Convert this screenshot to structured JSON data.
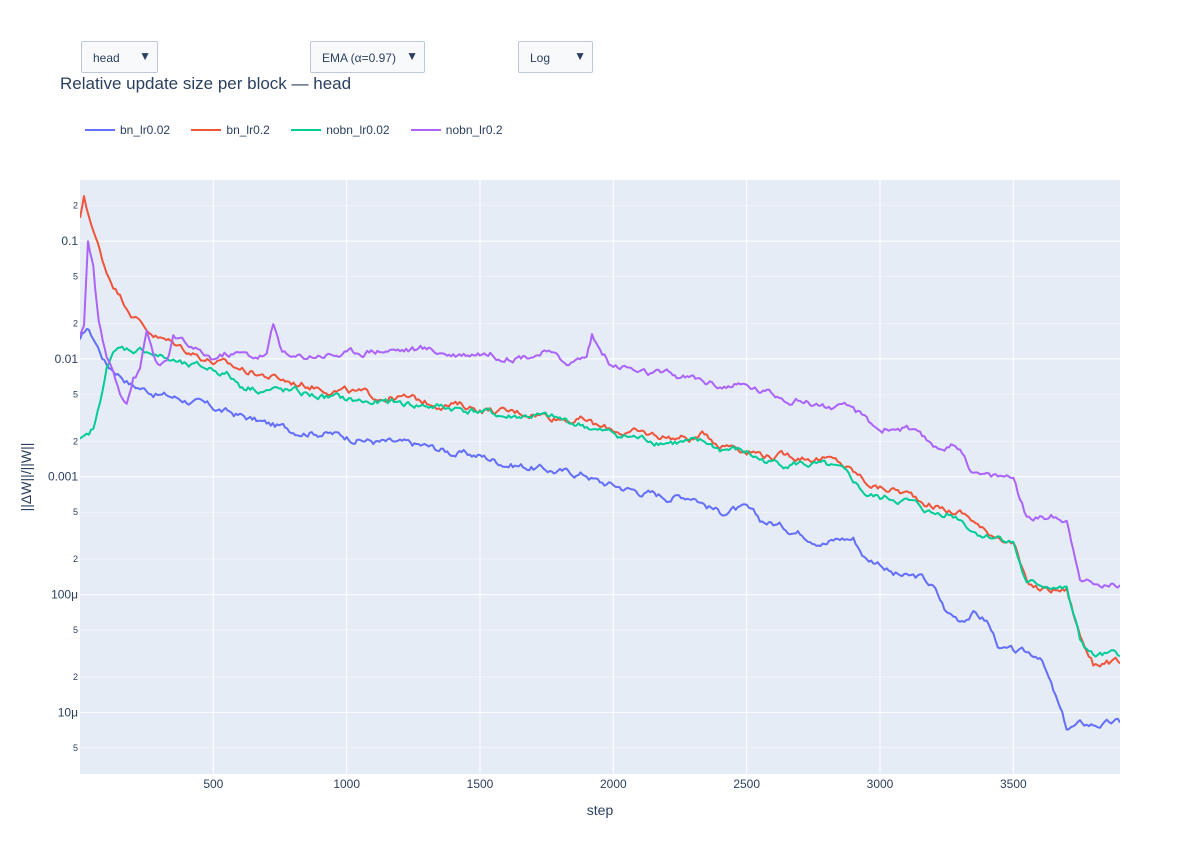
{
  "controls": {
    "block_select": {
      "value": "head"
    },
    "smoothing_select": {
      "value": "EMA (α=0.97)"
    },
    "scale_select": {
      "value": "Log"
    },
    "arrow": "▼"
  },
  "colors": {
    "plot_bg": "#e5ecf6",
    "grid": "#ffffff",
    "text": "#2a3f5f"
  },
  "chart_data": {
    "type": "line",
    "title": "Relative update size per block — head",
    "xlabel": "step",
    "ylabel": "||ΔW||/||W||",
    "xlim": [
      0,
      3900
    ],
    "ylim": [
      3e-06,
      0.33
    ],
    "y_scale": "log",
    "grid": true,
    "legend_placement": "top-left, horizontal",
    "x_ticks": [
      500,
      1000,
      1500,
      2000,
      2500,
      3000,
      3500
    ],
    "y_major_ticks": [
      {
        "value": 0.1,
        "label": "0.1"
      },
      {
        "value": 0.01,
        "label": "0.01"
      },
      {
        "value": 0.001,
        "label": "0.001"
      },
      {
        "value": 0.0001,
        "label": "100μ"
      },
      {
        "value": 1e-05,
        "label": "10μ"
      }
    ],
    "y_minor_ticks": [
      {
        "value": 0.2,
        "label": "2"
      },
      {
        "value": 0.05,
        "label": "5"
      },
      {
        "value": 0.02,
        "label": "2"
      },
      {
        "value": 0.005,
        "label": "5"
      },
      {
        "value": 0.002,
        "label": "2"
      },
      {
        "value": 0.0005,
        "label": "5"
      },
      {
        "value": 0.0002,
        "label": "2"
      },
      {
        "value": 5e-05,
        "label": "5"
      },
      {
        "value": 2e-05,
        "label": "2"
      },
      {
        "value": 5e-06,
        "label": "5"
      }
    ],
    "series": [
      {
        "name": "bn_lr0.02",
        "color": "#636efa",
        "x": [
          0,
          25,
          50,
          100,
          150,
          200,
          250,
          300,
          400,
          500,
          600,
          700,
          800,
          900,
          1000,
          1100,
          1200,
          1300,
          1400,
          1500,
          1600,
          1700,
          1800,
          1900,
          1950,
          2000,
          2100,
          2200,
          2300,
          2350,
          2400,
          2450,
          2500,
          2550,
          2600,
          2700,
          2800,
          2850,
          2900,
          2950,
          3000,
          3050,
          3100,
          3150,
          3200,
          3250,
          3300,
          3350,
          3400,
          3450,
          3500,
          3550,
          3600,
          3650,
          3700,
          3750,
          3800,
          3850,
          3900
        ],
        "y": [
          0.014,
          0.018,
          0.015,
          0.009,
          0.0075,
          0.006,
          0.0055,
          0.005,
          0.0045,
          0.0038,
          0.0033,
          0.0028,
          0.0025,
          0.0024,
          0.0022,
          0.002,
          0.0019,
          0.0018,
          0.0016,
          0.0015,
          0.0013,
          0.0012,
          0.0011,
          0.00105,
          0.0009,
          0.00085,
          0.00075,
          0.00068,
          0.0007,
          0.00058,
          0.0005,
          0.00053,
          0.00052,
          0.00042,
          0.0004,
          0.00034,
          0.00028,
          0.0003,
          0.0003,
          0.0002,
          0.00019,
          0.00015,
          0.00014,
          0.00014,
          0.000115,
          7e-05,
          6.2e-05,
          7e-05,
          6e-05,
          3.5e-05,
          3.2e-05,
          3.1e-05,
          3.1e-05,
          1.5e-05,
          7.2e-06,
          7.8e-06,
          7.9e-06,
          8e-06,
          8.2e-06
        ]
      },
      {
        "name": "bn_lr0.2",
        "color": "#ef553b",
        "x": [
          0,
          15,
          50,
          100,
          150,
          200,
          250,
          300,
          400,
          500,
          600,
          700,
          800,
          900,
          1000,
          1100,
          1200,
          1300,
          1400,
          1500,
          1600,
          1700,
          1800,
          1900,
          1950,
          2000,
          2100,
          2200,
          2300,
          2350,
          2400,
          2450,
          2500,
          2550,
          2600,
          2700,
          2800,
          2850,
          2900,
          2950,
          3000,
          3050,
          3100,
          3150,
          3200,
          3250,
          3300,
          3350,
          3400,
          3450,
          3500,
          3550,
          3600,
          3650,
          3700,
          3750,
          3800,
          3850,
          3900
        ],
        "y": [
          0.15,
          0.24,
          0.12,
          0.055,
          0.035,
          0.024,
          0.018,
          0.015,
          0.012,
          0.0095,
          0.0082,
          0.0072,
          0.0063,
          0.0058,
          0.0053,
          0.0048,
          0.0047,
          0.0043,
          0.0041,
          0.0038,
          0.0035,
          0.0035,
          0.0032,
          0.003,
          0.0026,
          0.0025,
          0.0023,
          0.0022,
          0.0021,
          0.0023,
          0.0019,
          0.0019,
          0.0017,
          0.0016,
          0.0015,
          0.0015,
          0.0014,
          0.0013,
          0.0011,
          0.0009,
          0.0008,
          0.00078,
          0.00072,
          0.00064,
          0.00058,
          0.00052,
          0.0005,
          0.00043,
          0.00033,
          0.00032,
          0.00028,
          0.00012,
          0.00011,
          0.00011,
          0.00011,
          4.5e-05,
          2.6e-05,
          2.7e-05,
          2.6e-05
        ]
      },
      {
        "name": "nobn_lr0.02",
        "color": "#00cc96",
        "x": [
          0,
          25,
          50,
          75,
          100,
          125,
          150,
          200,
          250,
          300,
          350,
          400,
          500,
          550,
          600,
          700,
          800,
          900,
          1000,
          1100,
          1200,
          1300,
          1400,
          1500,
          1600,
          1700,
          1800,
          1900,
          1950,
          2000,
          2100,
          2200,
          2300,
          2350,
          2400,
          2450,
          2500,
          2550,
          2600,
          2700,
          2800,
          2850,
          2900,
          2950,
          3000,
          3050,
          3100,
          3150,
          3200,
          3250,
          3300,
          3350,
          3400,
          3450,
          3500,
          3550,
          3600,
          3650,
          3700,
          3750,
          3800,
          3850,
          3900
        ],
        "y": [
          0.002,
          0.0021,
          0.0025,
          0.004,
          0.009,
          0.011,
          0.012,
          0.012,
          0.012,
          0.0105,
          0.0095,
          0.0085,
          0.0082,
          0.0075,
          0.006,
          0.0055,
          0.0052,
          0.0048,
          0.0045,
          0.0042,
          0.0042,
          0.004,
          0.0038,
          0.0036,
          0.0032,
          0.0033,
          0.003,
          0.0027,
          0.0024,
          0.0023,
          0.0021,
          0.002,
          0.0019,
          0.0019,
          0.0017,
          0.0017,
          0.0016,
          0.0014,
          0.0013,
          0.0013,
          0.0012,
          0.0011,
          0.0009,
          0.0007,
          0.00065,
          0.00065,
          0.00062,
          0.00055,
          0.00048,
          0.0005,
          0.00045,
          0.00035,
          0.00032,
          0.00031,
          0.00028,
          0.00012,
          0.00012,
          0.00012,
          0.00011,
          4e-05,
          3e-05,
          3e-05,
          3e-05
        ]
      },
      {
        "name": "nobn_lr0.2",
        "color": "#ab63fa",
        "x": [
          0,
          15,
          30,
          50,
          70,
          100,
          125,
          150,
          175,
          200,
          225,
          250,
          275,
          300,
          325,
          350,
          400,
          450,
          500,
          550,
          600,
          650,
          700,
          725,
          750,
          775,
          800,
          900,
          1000,
          1100,
          1200,
          1300,
          1400,
          1500,
          1600,
          1700,
          1750,
          1800,
          1850,
          1900,
          1920,
          1950,
          2000,
          2050,
          2100,
          2200,
          2300,
          2400,
          2500,
          2600,
          2700,
          2800,
          2850,
          2900,
          2950,
          3000,
          3050,
          3100,
          3150,
          3200,
          3250,
          3300,
          3350,
          3400,
          3450,
          3500,
          3550,
          3600,
          3650,
          3700,
          3750,
          3800,
          3850,
          3900
        ],
        "y": [
          0.015,
          0.02,
          0.1,
          0.06,
          0.02,
          0.01,
          0.008,
          0.0055,
          0.0045,
          0.007,
          0.008,
          0.017,
          0.011,
          0.0085,
          0.009,
          0.015,
          0.013,
          0.011,
          0.01,
          0.011,
          0.011,
          0.0105,
          0.011,
          0.019,
          0.013,
          0.011,
          0.01,
          0.011,
          0.011,
          0.012,
          0.012,
          0.012,
          0.011,
          0.0115,
          0.0105,
          0.011,
          0.0115,
          0.0095,
          0.0095,
          0.0105,
          0.016,
          0.012,
          0.0085,
          0.0085,
          0.0075,
          0.0072,
          0.0068,
          0.006,
          0.0058,
          0.005,
          0.0045,
          0.004,
          0.0037,
          0.0037,
          0.003,
          0.0025,
          0.0026,
          0.0026,
          0.0021,
          0.0018,
          0.0018,
          0.0018,
          0.0011,
          0.001,
          0.001,
          0.001,
          0.00045,
          0.00045,
          0.00046,
          0.00043,
          0.00015,
          0.00012,
          0.00012,
          0.00012
        ]
      }
    ]
  }
}
